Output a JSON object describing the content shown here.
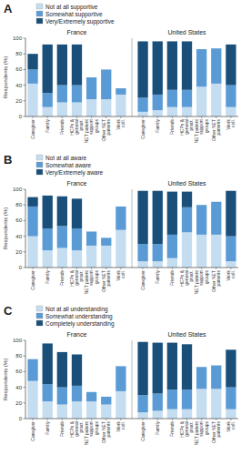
{
  "chart_data": [
    {
      "type": "bar",
      "stacked": true,
      "title": "A",
      "y_label": "Respondents (%)",
      "categories": [
        "Caregiver",
        "Family",
        "Friends",
        "HCPs &\ngeneral\npract.",
        "NET patient\nsupport\ngroups",
        "Other NET\npatients",
        "Work\ncoll.",
        "Caregiver",
        "Family",
        "Friends",
        "HCPs &\ngeneral\npract.",
        "NET patient\nsupport\ngroups",
        "Other NET\npatients",
        "Work\ncoll."
      ],
      "category_groups": [
        "France",
        "France",
        "France",
        "France",
        "France",
        "France",
        "France",
        "United States",
        "United States",
        "United States",
        "United States",
        "United States",
        "United States",
        "United States"
      ],
      "series": [
        {
          "name": "Not at all supportive",
          "color": "#c5ddf0",
          "values": [
            42,
            12,
            18,
            18,
            22,
            22,
            28,
            6,
            8,
            12,
            12,
            38,
            42,
            12
          ]
        },
        {
          "name": "Somewhat supportive",
          "color": "#5b9bd5",
          "values": [
            18,
            18,
            22,
            22,
            28,
            38,
            8,
            18,
            20,
            22,
            22,
            48,
            45,
            28
          ]
        },
        {
          "name": "Very/Extremely supportive",
          "color": "#1a4f7a",
          "values": [
            20,
            62,
            52,
            52,
            0,
            0,
            0,
            72,
            68,
            62,
            62,
            0,
            0,
            52
          ]
        }
      ],
      "ylim": [
        0,
        100
      ],
      "yticks": [
        0,
        20,
        40,
        60,
        80,
        100
      ],
      "grid": false,
      "legend": "top"
    },
    {
      "type": "bar",
      "stacked": true,
      "title": "B",
      "y_label": "Respondents (%)",
      "categories": [
        "Caregiver",
        "Family",
        "Friends",
        "HCPs &\ngeneral\npract.",
        "NET patient\nsupport\ngroups",
        "Other NET\npatients",
        "Work\ncoll.",
        "Caregiver",
        "Family",
        "Friends",
        "HCPs &\ngeneral\npract.",
        "NET patient\nsupport\ngroups",
        "Other NET\npatients",
        "Work\ncoll."
      ],
      "category_groups": [
        "France",
        "France",
        "France",
        "France",
        "France",
        "France",
        "France",
        "United States",
        "United States",
        "United States",
        "United States",
        "United States",
        "United States",
        "United States"
      ],
      "series": [
        {
          "name": "Not at all aware",
          "color": "#c5ddf0",
          "values": [
            40,
            22,
            25,
            22,
            28,
            28,
            48,
            8,
            8,
            12,
            45,
            42,
            42,
            8
          ]
        },
        {
          "name": "Somewhat aware",
          "color": "#5b9bd5",
          "values": [
            38,
            28,
            28,
            28,
            18,
            10,
            30,
            22,
            22,
            30,
            32,
            38,
            42,
            32
          ]
        },
        {
          "name": "Very/Extremely aware",
          "color": "#1a4f7a",
          "values": [
            12,
            42,
            38,
            38,
            0,
            0,
            0,
            68,
            68,
            55,
            20,
            0,
            0,
            58
          ]
        }
      ],
      "ylim": [
        0,
        100
      ],
      "yticks": [
        0,
        20,
        40,
        60,
        80,
        100
      ],
      "grid": false,
      "legend": "top"
    },
    {
      "type": "bar",
      "stacked": true,
      "title": "C",
      "y_label": "Respondents (%)",
      "categories": [
        "Caregiver",
        "Family",
        "Friends",
        "HCPs &\ngeneral\npract.",
        "NET patient\nsupport\ngroups",
        "Other NET\npatients",
        "Work\ncoll.",
        "Caregiver",
        "Family",
        "Friends",
        "HCPs &\ngeneral\npract.",
        "NET patient\nsupport\ngroups",
        "Other NET\npatients",
        "Work\ncoll."
      ],
      "category_groups": [
        "France",
        "France",
        "France",
        "France",
        "France",
        "France",
        "France",
        "United States",
        "United States",
        "United States",
        "United States",
        "United States",
        "United States",
        "United States"
      ],
      "series": [
        {
          "name": "Not at all understanding",
          "color": "#c5ddf0",
          "values": [
            48,
            22,
            18,
            22,
            22,
            18,
            35,
            8,
            10,
            12,
            12,
            38,
            38,
            12
          ]
        },
        {
          "name": "Somewhat understanding",
          "color": "#5b9bd5",
          "values": [
            28,
            22,
            22,
            20,
            12,
            10,
            32,
            22,
            22,
            25,
            25,
            28,
            30,
            28
          ]
        },
        {
          "name": "Completely understanding",
          "color": "#1a4f7a",
          "values": [
            0,
            52,
            45,
            40,
            0,
            0,
            0,
            68,
            65,
            60,
            58,
            0,
            0,
            48
          ]
        }
      ],
      "ylim": [
        0,
        100
      ],
      "yticks": [
        0,
        20,
        40,
        60,
        80,
        100
      ],
      "grid": false,
      "legend": "top"
    }
  ]
}
